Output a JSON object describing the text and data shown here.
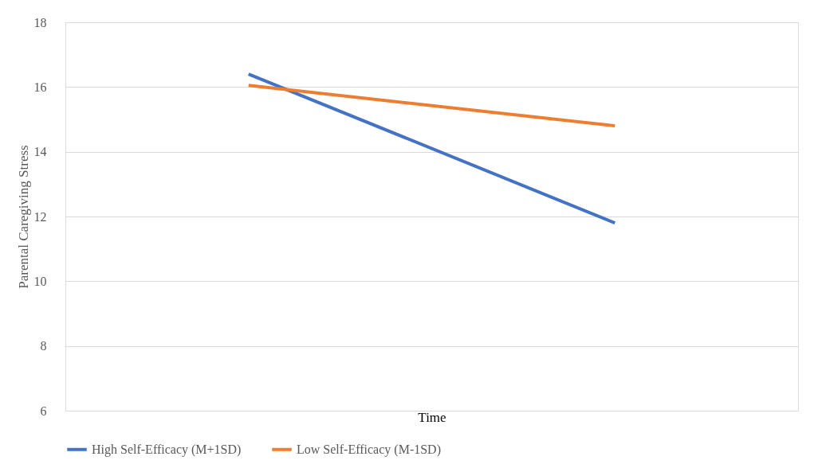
{
  "chart_data": {
    "type": "line",
    "xlabel": "Time",
    "ylabel": "Parental Caregiving Stress",
    "categories": [
      null,
      null
    ],
    "series": [
      {
        "name": "High Self-Efficacy (M+1SD)",
        "color": "#4472c4",
        "values": [
          16.4,
          11.8
        ]
      },
      {
        "name": "Low Self-Efficacy (M-1SD)",
        "color": "#ed7d31",
        "values": [
          16.05,
          14.8
        ]
      }
    ],
    "ylim": [
      6,
      18
    ],
    "yticks": [
      6,
      8,
      10,
      12,
      14,
      16,
      18
    ],
    "grid": "y",
    "legend": "bottom",
    "tick_labels": "y",
    "marker": "none",
    "line_style": "solid"
  }
}
